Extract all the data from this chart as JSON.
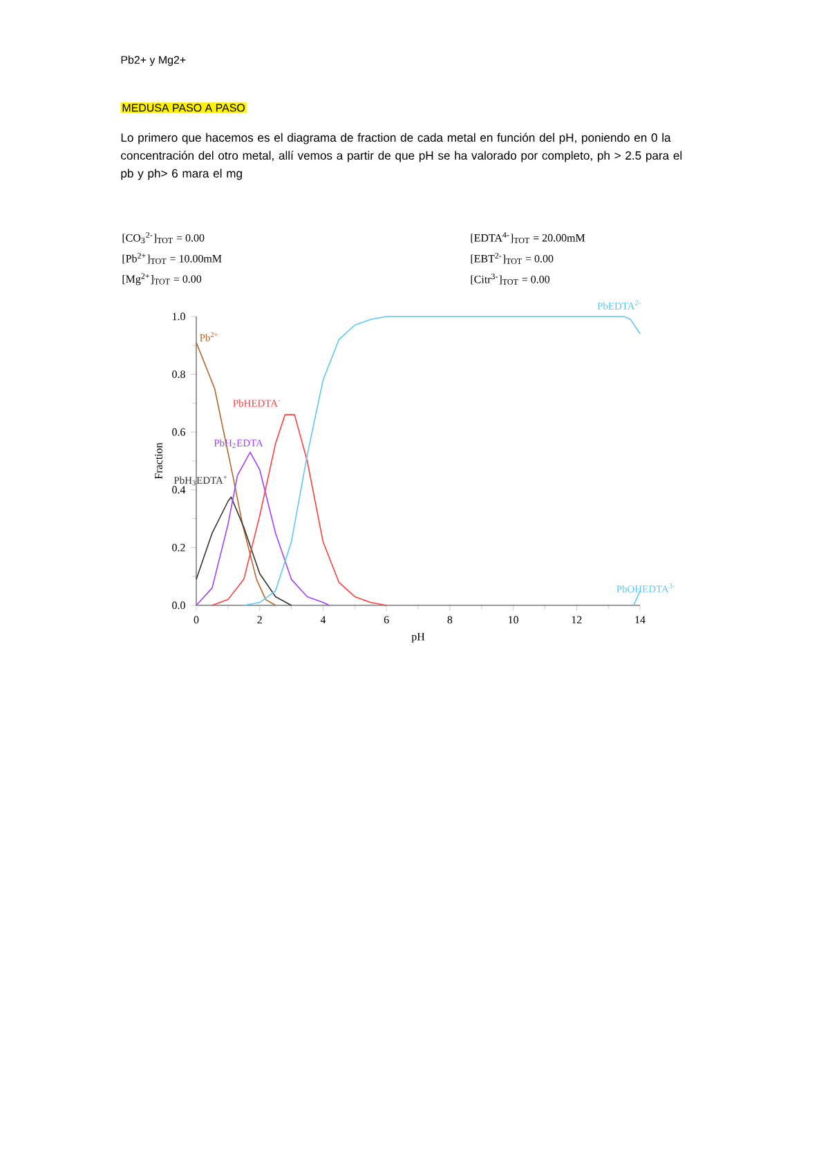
{
  "chart_data": {
    "type": "line",
    "title": "Pb2+  y Mg2+",
    "subtitle": "MEDUSA PASO A PASO",
    "xlabel": "pH",
    "ylabel": "Fraction",
    "annotations": [
      "Lo primero que hacemos es el diagrama de fraction de cada metal en función del pH, poniendo en 0 la concentración del otro metal, allí vemos a partir de que pH se ha valorado por completo, ph > 2.5 para el pb y ph> 6 mara el mg",
      "[CO$_{3}$$^{2-}$]$_{TOT}$ = 0.00",
      "[Pb$^{2+}$]$_{TOT}$ = 10.00mM",
      "[Mg$^{2+}$]$_{TOT}$ = 0.00",
      "[EDTA$^{4-}$]$_{TOT}$ = 20.00mM",
      "[EBT$^{2-}$]$_{TOT}$ = 0.00",
      "[Citr$^{3-}$]$_{TOT}$ = 0.00"
    ],
    "xlim": [
      0,
      14
    ],
    "ylim": [
      0,
      1
    ],
    "xticks": [
      0,
      2,
      4,
      6,
      8,
      10,
      12,
      14
    ],
    "yticks": [
      {
        "value": 0,
        "label": "0.0"
      },
      {
        "value": 0.2,
        "label": "0.2"
      },
      {
        "value": 0.4,
        "label": "0.4"
      },
      {
        "value": 0.6,
        "label": "0.6"
      },
      {
        "value": 0.8,
        "label": "0.8"
      },
      {
        "value": 1,
        "label": "1.0"
      }
    ],
    "grid": false,
    "marker": "none",
    "line_style": "solid",
    "series": [
      {
        "name": "Pb$^{2+}$",
        "color": "#b5652a",
        "x": [
          0,
          0.58,
          1.17,
          1.46,
          1.9,
          2.19,
          2.5
        ],
        "values": [
          0.91,
          0.75,
          0.44,
          0.28,
          0.09,
          0.02,
          0
        ]
      },
      {
        "name": "PbH$_{3}$EDTA$^{+}$",
        "color": "#333333",
        "x": [
          0,
          0.5,
          1.0,
          1.1,
          1.5,
          2.0,
          2.5,
          3.0
        ],
        "values": [
          0.09,
          0.25,
          0.36,
          0.375,
          0.27,
          0.11,
          0.03,
          0
        ]
      },
      {
        "name": "PbH$_{2}$EDTA",
        "color": "#a040ff",
        "x": [
          0,
          0.5,
          1.0,
          1.3,
          1.7,
          2.0,
          2.5,
          3.0,
          3.5,
          4.0,
          4.2
        ],
        "values": [
          0,
          0.06,
          0.28,
          0.45,
          0.53,
          0.47,
          0.25,
          0.09,
          0.03,
          0.01,
          0
        ]
      },
      {
        "name": "PbHEDTA$^{-}$",
        "color": "#ff3c3c",
        "x": [
          0.5,
          1.0,
          1.5,
          2.0,
          2.5,
          2.8,
          3.1,
          3.5,
          4.0,
          4.5,
          5.0,
          5.5,
          6.0
        ],
        "values": [
          0,
          0.02,
          0.09,
          0.31,
          0.56,
          0.66,
          0.66,
          0.5,
          0.22,
          0.08,
          0.03,
          0.01,
          0
        ]
      },
      {
        "name": "PbEDTA$^{2-}$",
        "color": "#5bc8f5",
        "x": [
          1.5,
          2.0,
          2.5,
          3.0,
          3.5,
          4.0,
          4.5,
          5.0,
          5.5,
          6.0,
          13.5,
          13.7,
          14.0
        ],
        "values": [
          0,
          0.01,
          0.05,
          0.22,
          0.52,
          0.78,
          0.92,
          0.97,
          0.99,
          1.0,
          1.0,
          0.99,
          0.94
        ]
      },
      {
        "name": "PbOHEDTA$^{3-}$",
        "color": "#5bc8f5",
        "x": [
          13.8,
          14.0
        ],
        "values": [
          0,
          0.05
        ]
      }
    ]
  }
}
